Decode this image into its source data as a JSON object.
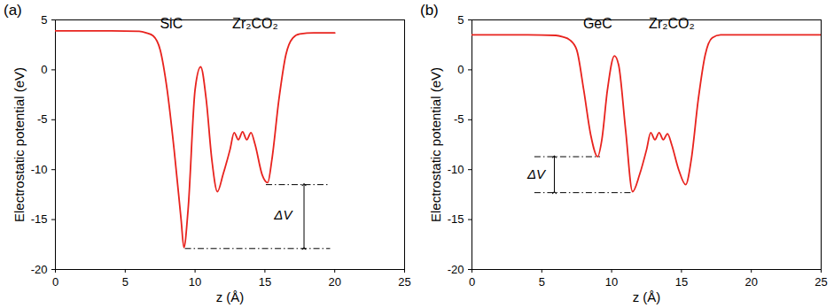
{
  "chart_data": [
    {
      "type": "line",
      "panel_label": "(a)",
      "x_label": "z (Å)",
      "y_label": "Electrostatic potential (eV)",
      "xlim": [
        0,
        25
      ],
      "xticks": [
        0,
        5,
        10,
        15,
        20,
        25
      ],
      "ylim": [
        -20,
        5
      ],
      "yticks": [
        -20,
        -15,
        -10,
        -5,
        0,
        5
      ],
      "color": "#e8231e",
      "x": [
        0,
        2,
        4,
        6,
        6.5,
        7,
        7.5,
        8,
        8.5,
        9,
        9.2,
        9.5,
        10,
        10.4,
        10.8,
        11.2,
        11.6,
        12,
        12.5,
        12.8,
        13.1,
        13.4,
        13.7,
        14,
        14.3,
        14.8,
        15.2,
        15.5,
        16,
        16.5,
        17,
        17.5,
        18.5,
        20
      ],
      "values": [
        3.9,
        3.9,
        3.9,
        3.85,
        3.7,
        3.4,
        2,
        -2,
        -8,
        -15,
        -17.8,
        -14,
        -2,
        0.3,
        -3,
        -9,
        -12.2,
        -10.5,
        -8,
        -6.3,
        -7,
        -6.2,
        -7,
        -6.3,
        -7.5,
        -10.5,
        -11.3,
        -9,
        -3,
        1.5,
        3.2,
        3.6,
        3.7,
        3.7
      ],
      "annotations": [
        {
          "text": "SiC",
          "x": 8.3,
          "y": 4.6
        },
        {
          "text": "Zr₂CO₂",
          "x": 14.3,
          "y": 4.6
        }
      ],
      "delta_v": {
        "label": "ΔV",
        "label_x": 16.3,
        "label_y": -14.6,
        "arrow_x": 17.8,
        "line_style": "dashdot",
        "lines": [
          {
            "y": -11.5,
            "x1": 15.1,
            "x2": 19.7
          },
          {
            "y": -17.9,
            "x1": 9.3,
            "x2": 19.7
          }
        ]
      }
    },
    {
      "type": "line",
      "panel_label": "(b)",
      "x_label": "z (Å)",
      "y_label": "Electrostatic potential (eV)",
      "xlim": [
        0,
        25
      ],
      "xticks": [
        0,
        5,
        10,
        15,
        20,
        25
      ],
      "ylim": [
        -20,
        5
      ],
      "yticks": [
        -20,
        -15,
        -10,
        -5,
        0,
        5
      ],
      "color": "#e8231e",
      "x": [
        0,
        2,
        4,
        6,
        6.5,
        7,
        7.5,
        8,
        8.5,
        9,
        9.3,
        9.7,
        10.2,
        10.5,
        11,
        11.5,
        12,
        12.5,
        12.8,
        13.1,
        13.4,
        13.7,
        14,
        14.3,
        14.8,
        15.3,
        15.7,
        16.2,
        16.7,
        17.2,
        17.8,
        19,
        22,
        25
      ],
      "values": [
        3.5,
        3.5,
        3.5,
        3.45,
        3.3,
        3.0,
        2,
        -2,
        -6.5,
        -8.7,
        -7,
        -2,
        1.4,
        0.5,
        -6,
        -12.2,
        -10.5,
        -8,
        -6.3,
        -7,
        -6.3,
        -7,
        -6.4,
        -7.5,
        -10,
        -11.5,
        -9,
        -3,
        1.5,
        3.2,
        3.5,
        3.5,
        3.5,
        3.5
      ],
      "annotations": [
        {
          "text": "GeC",
          "x": 9.0,
          "y": 4.6
        },
        {
          "text": "Zr₂CO₂",
          "x": 14.3,
          "y": 4.6
        }
      ],
      "delta_v": {
        "label": "ΔV",
        "label_x": 4.6,
        "label_y": -10.5,
        "arrow_x": 5.9,
        "line_style": "dashdot",
        "lines": [
          {
            "y": -8.7,
            "x1": 4.5,
            "x2": 9.2
          },
          {
            "y": -12.3,
            "x1": 4.5,
            "x2": 11.5
          }
        ]
      }
    }
  ]
}
